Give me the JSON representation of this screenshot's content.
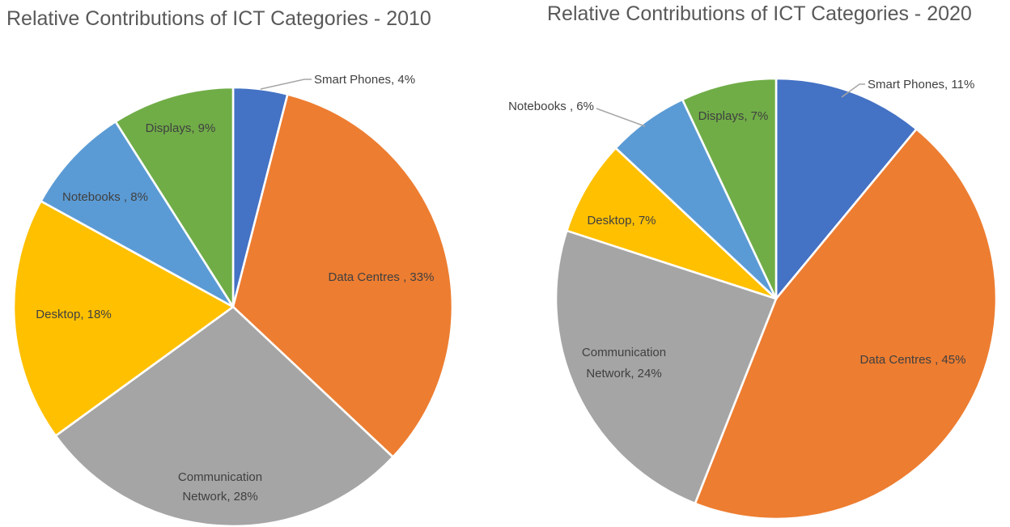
{
  "page": {
    "background_color": "#ffffff",
    "text_color": "#404040",
    "title_color": "#595959"
  },
  "chart_data": [
    {
      "type": "pie",
      "title": "Relative Contributions of ICT Categories - 2010",
      "legend": "none",
      "start_angle_deg": 0,
      "direction": "clockwise",
      "slices": [
        {
          "name": "Smart Phones",
          "value_pct": 4,
          "label_lines": [
            "Smart Phones, 4%"
          ],
          "color": "#4472C4",
          "label_placement": "outside-leader"
        },
        {
          "name": "Data Centres",
          "value_pct": 33,
          "label_lines": [
            "Data Centres , 33%"
          ],
          "color": "#ED7D31",
          "label_placement": "inside"
        },
        {
          "name": "Communication Network",
          "value_pct": 28,
          "label_lines": [
            "Communication",
            "Network, 28%"
          ],
          "color": "#A5A5A5",
          "label_placement": "inside"
        },
        {
          "name": "Desktop",
          "value_pct": 18,
          "label_lines": [
            "Desktop, 18%"
          ],
          "color": "#FFC000",
          "label_placement": "inside"
        },
        {
          "name": "Notebooks",
          "value_pct": 8,
          "label_lines": [
            "Notebooks , 8%"
          ],
          "color": "#5B9BD5",
          "label_placement": "inside"
        },
        {
          "name": "Displays",
          "value_pct": 9,
          "label_lines": [
            "Displays, 9%"
          ],
          "color": "#70AD47",
          "label_placement": "inside"
        }
      ]
    },
    {
      "type": "pie",
      "title": "Relative Contributions of ICT Categories - 2020",
      "legend": "none",
      "start_angle_deg": 0,
      "direction": "clockwise",
      "slices": [
        {
          "name": "Smart Phones",
          "value_pct": 11,
          "label_lines": [
            "Smart Phones, 11%"
          ],
          "color": "#4472C4",
          "label_placement": "outside-leader"
        },
        {
          "name": "Data Centres",
          "value_pct": 45,
          "label_lines": [
            "Data Centres , 45%"
          ],
          "color": "#ED7D31",
          "label_placement": "inside"
        },
        {
          "name": "Communication Network",
          "value_pct": 24,
          "label_lines": [
            "Communication",
            "Network, 24%"
          ],
          "color": "#A5A5A5",
          "label_placement": "inside"
        },
        {
          "name": "Desktop",
          "value_pct": 7,
          "label_lines": [
            "Desktop, 7%"
          ],
          "color": "#FFC000",
          "label_placement": "inside"
        },
        {
          "name": "Notebooks",
          "value_pct": 6,
          "label_lines": [
            "Notebooks , 6%"
          ],
          "color": "#5B9BD5",
          "label_placement": "outside-leader"
        },
        {
          "name": "Displays",
          "value_pct": 7,
          "label_lines": [
            "Displays, 7%"
          ],
          "color": "#70AD47",
          "label_placement": "inside"
        }
      ]
    }
  ]
}
